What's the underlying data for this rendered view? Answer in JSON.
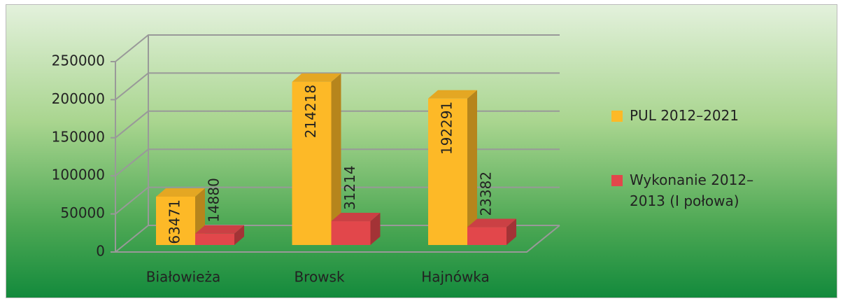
{
  "chart_data": {
    "type": "bar3d",
    "categories": [
      "Białowieża",
      "Browsk",
      "Hajnówka"
    ],
    "series": [
      {
        "name": "PUL 2012–2021",
        "color": "#FDB927",
        "values": [
          63471,
          214218,
          192291
        ]
      },
      {
        "name": "Wykonanie 2012–2013 (I połowa)",
        "color": "#E2474B",
        "values": [
          14880,
          31214,
          23382
        ]
      }
    ],
    "ylim": [
      0,
      250000
    ],
    "yticks": [
      0,
      50000,
      100000,
      150000,
      200000,
      250000
    ],
    "grid": true,
    "legend": "right"
  }
}
